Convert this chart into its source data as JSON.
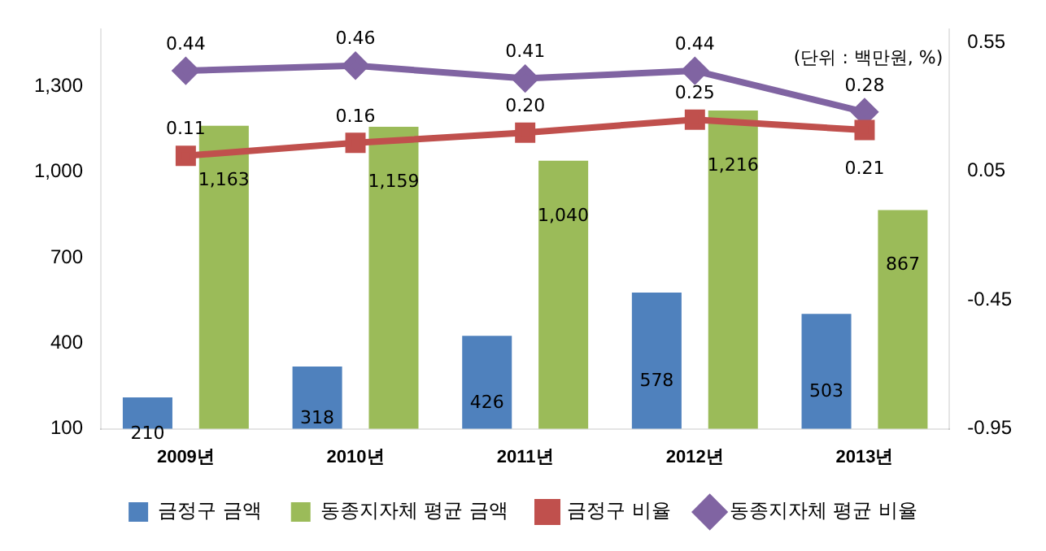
{
  "chart_data": {
    "type": "bar",
    "categories": [
      "2009년",
      "2010년",
      "2011년",
      "2012년",
      "2013년"
    ],
    "series": [
      {
        "name": "금정구 금액",
        "color": "#4f81bd",
        "values": [
          210,
          318,
          426,
          578,
          503
        ],
        "value_labels": [
          "210",
          "318",
          "426",
          "578",
          "503"
        ]
      },
      {
        "name": "동종지자체 평균 금액",
        "color": "#9bbb59",
        "values": [
          1163,
          1159,
          1040,
          1216,
          867
        ],
        "value_labels": [
          "1,163",
          "1,159",
          "1,040",
          "1,216",
          "867"
        ]
      },
      {
        "name": "금정구 비율",
        "type": "line",
        "axis": "y2",
        "marker": "square",
        "color": "#c0504d",
        "values": [
          0.11,
          0.16,
          0.2,
          0.25,
          0.21
        ],
        "value_labels": [
          "0.11",
          "0.16",
          "0.20",
          "0.25",
          "0.21"
        ]
      },
      {
        "name": "동종지자체 평균 비율",
        "type": "line",
        "axis": "y2",
        "marker": "diamond",
        "color": "#8064a2",
        "values": [
          0.44,
          0.46,
          0.41,
          0.44,
          0.28
        ],
        "value_labels": [
          "0.44",
          "0.46",
          "0.41",
          "0.44",
          "0.28"
        ]
      }
    ],
    "ylim": [
      100,
      1500
    ],
    "yticks": [
      {
        "value": 100,
        "label": "100"
      },
      {
        "value": 400,
        "label": "400"
      },
      {
        "value": 700,
        "label": "700"
      },
      {
        "value": 1000,
        "label": "1,000"
      },
      {
        "value": 1300,
        "label": "1,300"
      }
    ],
    "y2lim": [
      -0.95,
      0.6
    ],
    "y2ticks": [
      -0.95,
      -0.45,
      0.05,
      0.55
    ],
    "annotations": [
      "(단위 : 백만원, %)"
    ],
    "grid": false,
    "legend": "bottom"
  }
}
